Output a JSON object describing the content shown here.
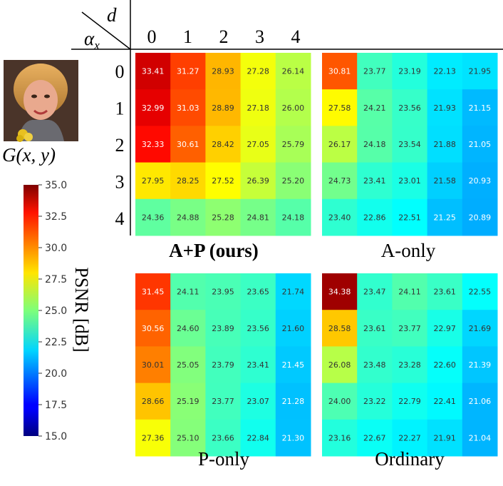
{
  "chart_data": [
    {
      "type": "heatmap",
      "title": "A+P (ours)",
      "xlabel": "d",
      "ylabel": "α_x",
      "x_ticks": [
        "0",
        "1",
        "2",
        "3",
        "4"
      ],
      "y_ticks": [
        "0",
        "1",
        "2",
        "3",
        "4"
      ],
      "values": [
        [
          "33.41",
          "31.27",
          "28.93",
          "27.28",
          "26.14"
        ],
        [
          "32.99",
          "31.03",
          "28.89",
          "27.18",
          "26.00"
        ],
        [
          "32.33",
          "30.61",
          "28.42",
          "27.05",
          "25.79"
        ],
        [
          "27.95",
          "28.25",
          "27.52",
          "26.39",
          "25.20"
        ],
        [
          "24.36",
          "24.88",
          "25.28",
          "24.81",
          "24.18"
        ]
      ]
    },
    {
      "type": "heatmap",
      "title": "A-only",
      "values": [
        [
          "30.81",
          "23.77",
          "23.19",
          "22.13",
          "21.95"
        ],
        [
          "27.58",
          "24.21",
          "23.56",
          "21.93",
          "21.15"
        ],
        [
          "26.17",
          "24.18",
          "23.54",
          "21.88",
          "21.05"
        ],
        [
          "24.73",
          "23.41",
          "23.01",
          "21.58",
          "20.93"
        ],
        [
          "23.40",
          "22.86",
          "22.51",
          "21.25",
          "20.89"
        ]
      ]
    },
    {
      "type": "heatmap",
      "title": "P-only",
      "values": [
        [
          "31.45",
          "24.11",
          "23.95",
          "23.65",
          "21.74"
        ],
        [
          "30.56",
          "24.60",
          "23.89",
          "23.56",
          "21.60"
        ],
        [
          "30.01",
          "25.05",
          "23.79",
          "23.41",
          "21.45"
        ],
        [
          "28.66",
          "25.19",
          "23.77",
          "23.07",
          "21.28"
        ],
        [
          "27.36",
          "25.10",
          "23.66",
          "22.84",
          "21.30"
        ]
      ]
    },
    {
      "type": "heatmap",
      "title": "Ordinary",
      "values": [
        [
          "34.38",
          "23.47",
          "24.11",
          "23.61",
          "22.55"
        ],
        [
          "28.58",
          "23.61",
          "23.77",
          "22.97",
          "21.69"
        ],
        [
          "26.08",
          "23.48",
          "23.28",
          "22.60",
          "21.39"
        ],
        [
          "24.00",
          "23.22",
          "22.79",
          "22.41",
          "21.06"
        ],
        [
          "23.16",
          "22.67",
          "22.27",
          "21.91",
          "21.04"
        ]
      ]
    }
  ],
  "colorbar": {
    "label": "PSNR [dB]",
    "range": [
      15.0,
      35.0
    ],
    "ticks": [
      "15.0",
      "17.5",
      "20.0",
      "22.5",
      "25.0",
      "27.5",
      "30.0",
      "32.5",
      "35.0"
    ],
    "colormap": "jet"
  },
  "corner_labels": {
    "d": "d",
    "alpha": "α",
    "alpha_sub": "x"
  },
  "image_caption": "G(x, y)"
}
